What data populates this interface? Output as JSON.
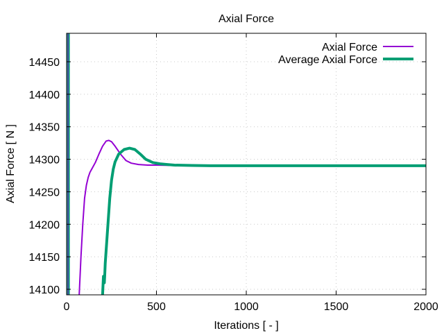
{
  "chart_data": {
    "type": "line",
    "title": "Axial Force",
    "xlabel": "Iterations [ - ]",
    "ylabel": "Axial Force [ N ]",
    "xlim": [
      0,
      2000
    ],
    "ylim": [
      14090,
      14490
    ],
    "xticks": [
      0,
      500,
      1000,
      1500,
      2000
    ],
    "yticks": [
      14100,
      14150,
      14200,
      14250,
      14300,
      14350,
      14400,
      14450
    ],
    "grid": true,
    "legend_position": "top-right",
    "series": [
      {
        "name": "Axial Force",
        "color": "#9400d3",
        "line_width": 2,
        "x": [
          70,
          80,
          90,
          100,
          110,
          120,
          130,
          140,
          160,
          180,
          200,
          220,
          235,
          250,
          270,
          300,
          330,
          360,
          400,
          450,
          500,
          600,
          800,
          1000,
          1500,
          2000
        ],
        "y": [
          14090,
          14150,
          14200,
          14240,
          14260,
          14272,
          14280,
          14285,
          14295,
          14308,
          14320,
          14328,
          14329,
          14327,
          14320,
          14308,
          14298,
          14294,
          14292,
          14291,
          14291,
          14290.5,
          14290,
          14290,
          14290,
          14290
        ]
      },
      {
        "name": "Average Axial Force",
        "color": "#009e73",
        "line_width": 4,
        "x": [
          200,
          205,
          210,
          212,
          215,
          220,
          230,
          240,
          250,
          260,
          270,
          290,
          320,
          350,
          380,
          410,
          440,
          480,
          520,
          560,
          600,
          700,
          800,
          1000,
          1500,
          2000
        ],
        "y": [
          14090,
          14120,
          14110,
          14120,
          14140,
          14160,
          14200,
          14240,
          14268,
          14285,
          14296,
          14308,
          14315,
          14317,
          14315,
          14308,
          14300,
          14295,
          14293,
          14292,
          14291,
          14290.5,
          14290,
          14290,
          14290,
          14290
        ]
      }
    ],
    "annotations": []
  },
  "legend": [
    {
      "label": "Axial Force",
      "color": "#9400d3"
    },
    {
      "label": "Average Axial Force",
      "color": "#009e73"
    }
  ]
}
